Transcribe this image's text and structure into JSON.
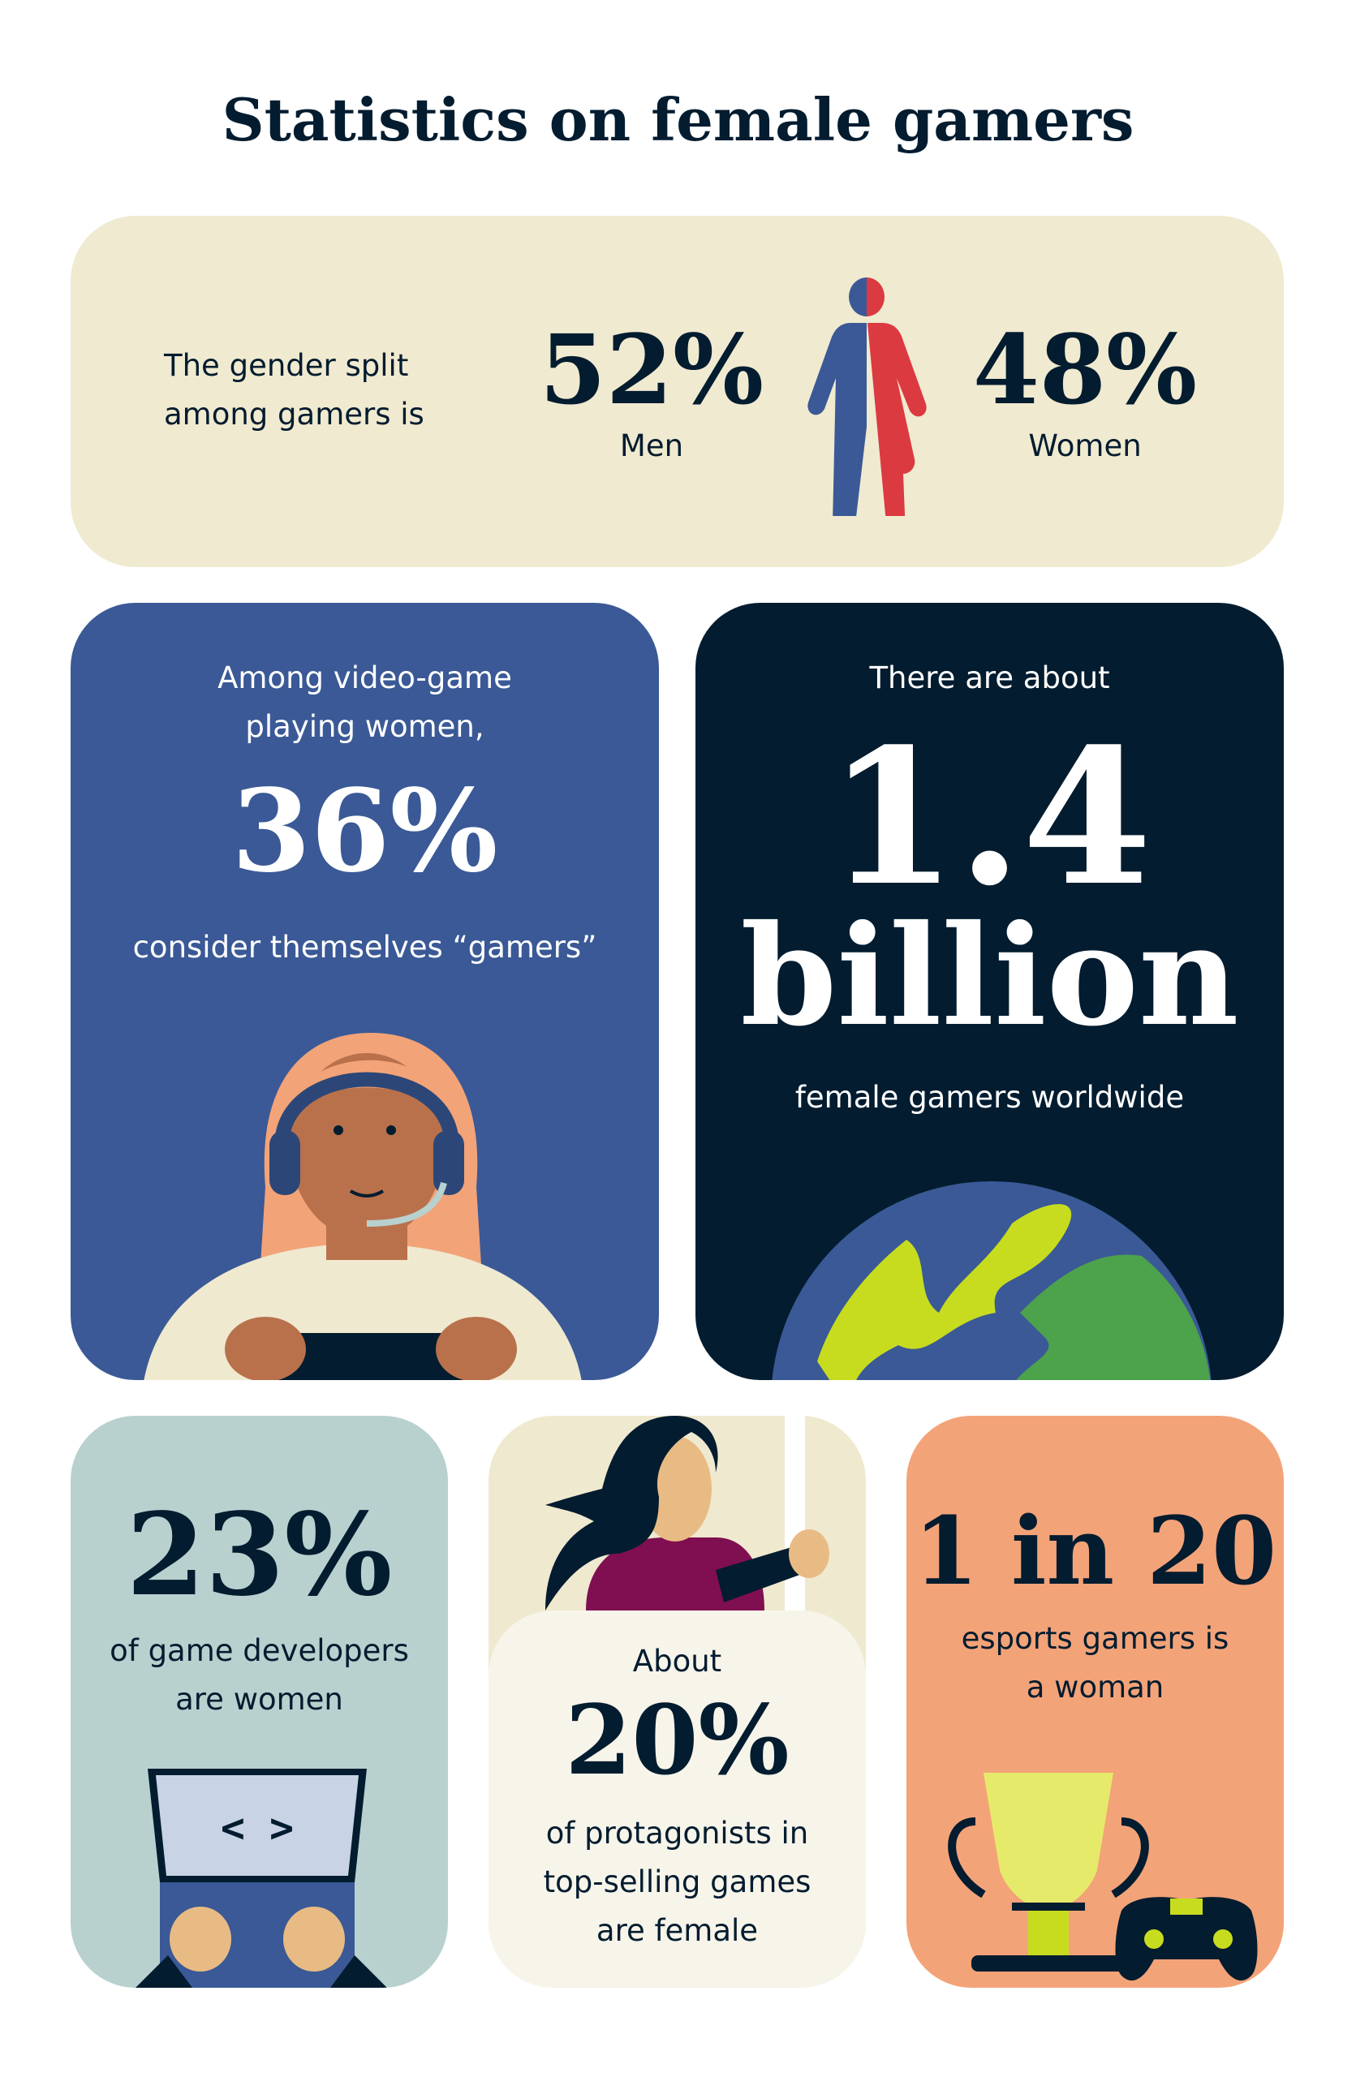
{
  "title": "Statistics on female gamers",
  "gender_split": {
    "intro": [
      "The gender split",
      "among gamers is"
    ],
    "men": {
      "value": "52%",
      "label": "Men"
    },
    "women": {
      "value": "48%",
      "label": "Women"
    },
    "icon": "half-man-half-woman-figure-icon",
    "colors": {
      "men": "#3a5996",
      "women": "#db3a40",
      "background": "#f0ead0"
    }
  },
  "women_gamers": {
    "intro": [
      "Among video-game",
      "playing women,"
    ],
    "value": "36%",
    "caption": "consider themselves “gamers”",
    "icon": "woman-with-headset-and-controller",
    "color": "#3a5996"
  },
  "worldwide": {
    "intro": "There are about",
    "value": "1.4",
    "unit": "billion",
    "caption": "female gamers worldwide",
    "icon": "globe-icon",
    "color": "#031c2f"
  },
  "developers": {
    "value": "23%",
    "caption": [
      "of game developers",
      "are women"
    ],
    "icon": "laptop-code-icon",
    "color": "#b8d1cf"
  },
  "protagonists": {
    "intro": "About",
    "value": "20%",
    "caption": [
      "of protagonists in",
      "top-selling games",
      "are female"
    ],
    "icon": "female-warrior-with-sword",
    "color": "#efe9cf"
  },
  "esports": {
    "value": "1 in 20",
    "caption": [
      "esports gamers is",
      "a woman"
    ],
    "icon": "trophy-and-gamepad-icon",
    "color": "#f3a378"
  }
}
